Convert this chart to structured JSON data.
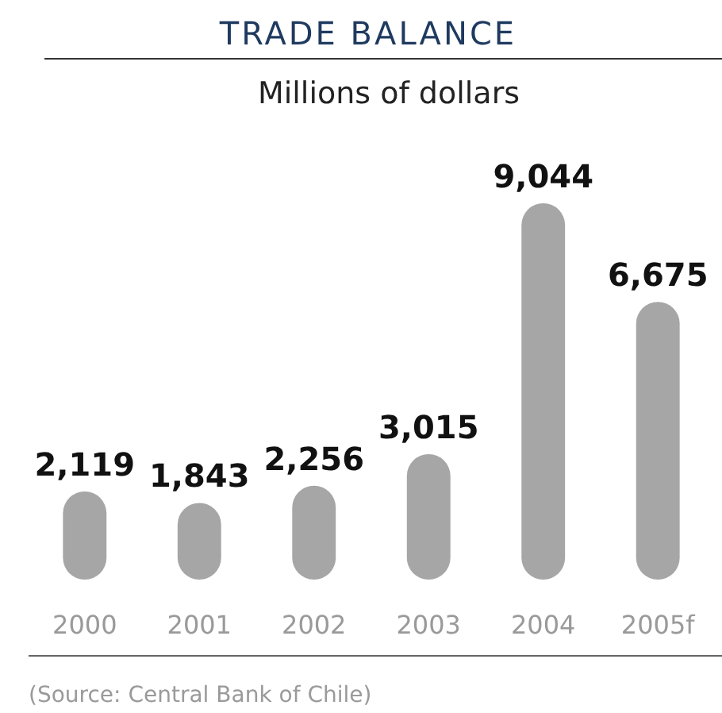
{
  "chart_data": {
    "type": "bar",
    "title": "TRADE BALANCE",
    "subtitle": "Millions of dollars",
    "categories": [
      "2000",
      "2001",
      "2002",
      "2003",
      "2004",
      "2005f"
    ],
    "values": [
      2119,
      1843,
      2256,
      3015,
      9044,
      6675
    ],
    "color": "#a6a6a6",
    "value_labels": [
      "2,119",
      "1,843",
      "2,256",
      "3,015",
      "9,044",
      "6,675"
    ],
    "annotations": [
      "(Source: Central Bank of Chile)"
    ]
  }
}
